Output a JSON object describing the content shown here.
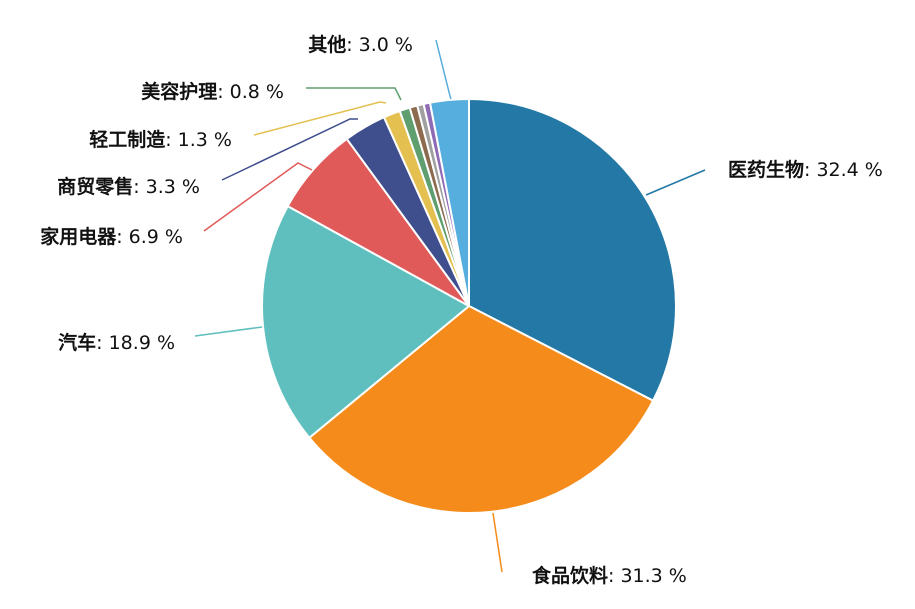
{
  "chart_data": {
    "type": "pie",
    "title": "",
    "unit": "%",
    "slices": [
      {
        "name": "医药生物",
        "value": 32.4,
        "value_label": "32.4 %",
        "color": "#2378a5"
      },
      {
        "name": "食品饮料",
        "value": 31.3,
        "value_label": "31.3 %",
        "color": "#f58b1a"
      },
      {
        "name": "汽车",
        "value": 18.9,
        "value_label": "18.9 %",
        "color": "#5fbfbf"
      },
      {
        "name": "家用电器",
        "value": 6.9,
        "value_label": "6.9 %",
        "color": "#e05a5a"
      },
      {
        "name": "商贸零售",
        "value": 3.3,
        "value_label": "3.3 %",
        "color": "#3f4e8c"
      },
      {
        "name": "轻工制造",
        "value": 1.3,
        "value_label": "1.3 %",
        "color": "#e3c04f"
      },
      {
        "name": "美容护理",
        "value": 0.8,
        "value_label": "0.8 %",
        "color": "#5f9e6e"
      },
      {
        "name": "",
        "value": 0.6,
        "value_label": "",
        "color": "#8c6b4f"
      },
      {
        "name": "",
        "value": 0.5,
        "value_label": "",
        "color": "#a0a0a0"
      },
      {
        "name": "",
        "value": 0.5,
        "value_label": "",
        "color": "#8e6bb5"
      },
      {
        "name": "其他",
        "value": 3.0,
        "value_label": "3.0 %",
        "color": "#56aede"
      }
    ]
  }
}
